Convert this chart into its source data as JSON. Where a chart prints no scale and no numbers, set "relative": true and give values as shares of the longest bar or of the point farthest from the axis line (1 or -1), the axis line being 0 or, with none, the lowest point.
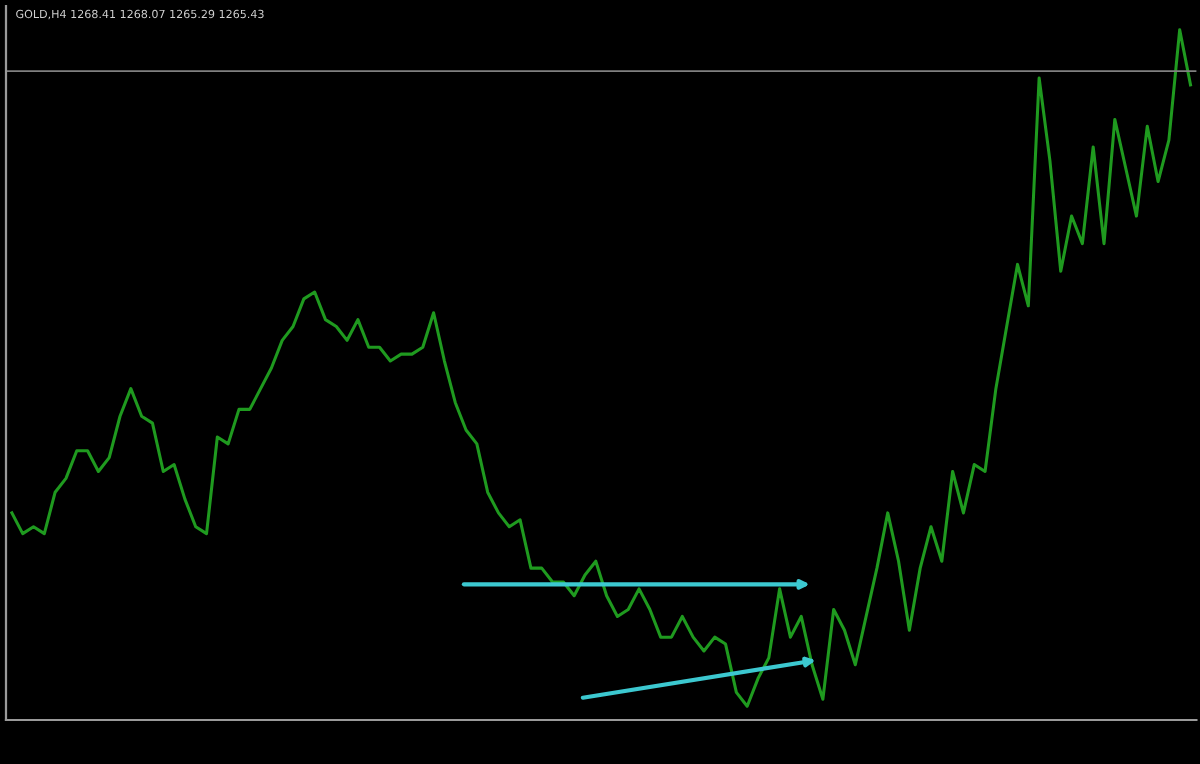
{
  "chart_data": {
    "type": "line",
    "relative": true,
    "title": "GOLD,H4 1268.41 1268.07 1265.29 1265.43",
    "categories": [
      null,
      null,
      null,
      null,
      null,
      null,
      null,
      null,
      null,
      null,
      null,
      null,
      null,
      null,
      null,
      null,
      null,
      null,
      null,
      null,
      null,
      null,
      null,
      null,
      null,
      null,
      null,
      null,
      null,
      null,
      null,
      null,
      null,
      null,
      null,
      null,
      null,
      null,
      null,
      null,
      null,
      null,
      null,
      null,
      null,
      null,
      null,
      null,
      null,
      null,
      null,
      null,
      null,
      null,
      null,
      null,
      null,
      null,
      null,
      null,
      null,
      null,
      null,
      null,
      null,
      null,
      null,
      null,
      null,
      null,
      null,
      null,
      null,
      null,
      null,
      null,
      null,
      null,
      null,
      null,
      null,
      null,
      null,
      null,
      null,
      null,
      null,
      null,
      null,
      null,
      null,
      null,
      null,
      null,
      null,
      null,
      null,
      null,
      null,
      null,
      null,
      null,
      null,
      null,
      null,
      null,
      null,
      null,
      null,
      null
    ],
    "series": [
      {
        "color": "#1f9a1f",
        "values": [
          0.3,
          0.27,
          0.28,
          0.27,
          0.33,
          0.35,
          0.39,
          0.39,
          0.36,
          0.38,
          0.44,
          0.48,
          0.44,
          0.43,
          0.36,
          0.37,
          0.32,
          0.28,
          0.27,
          0.41,
          0.4,
          0.45,
          0.45,
          0.48,
          0.51,
          0.55,
          0.57,
          0.61,
          0.62,
          0.58,
          0.57,
          0.55,
          0.58,
          0.54,
          0.54,
          0.52,
          0.53,
          0.53,
          0.54,
          0.59,
          0.52,
          0.46,
          0.42,
          0.4,
          0.33,
          0.3,
          0.28,
          0.29,
          0.22,
          0.22,
          0.2,
          0.2,
          0.18,
          0.21,
          0.23,
          0.18,
          0.15,
          0.16,
          0.19,
          0.16,
          0.12,
          0.12,
          0.15,
          0.12,
          0.1,
          0.12,
          0.11,
          0.04,
          0.02,
          0.06,
          0.09,
          0.19,
          0.12,
          0.15,
          0.08,
          0.03,
          0.16,
          0.13,
          0.08,
          0.15,
          0.22,
          0.3,
          0.23,
          0.13,
          0.22,
          0.28,
          0.23,
          0.36,
          0.3,
          0.37,
          0.36,
          0.48,
          0.57,
          0.66,
          0.6,
          0.93,
          0.81,
          0.65,
          0.73,
          0.69,
          0.83,
          0.69,
          0.87,
          0.8,
          0.73,
          0.86,
          0.78,
          0.84,
          1.0,
          0.92
        ]
      }
    ],
    "ref_lines": [
      {
        "axis": "y",
        "value": 0.94,
        "color": "#808080"
      }
    ],
    "grid": false,
    "legend": false
  }
}
